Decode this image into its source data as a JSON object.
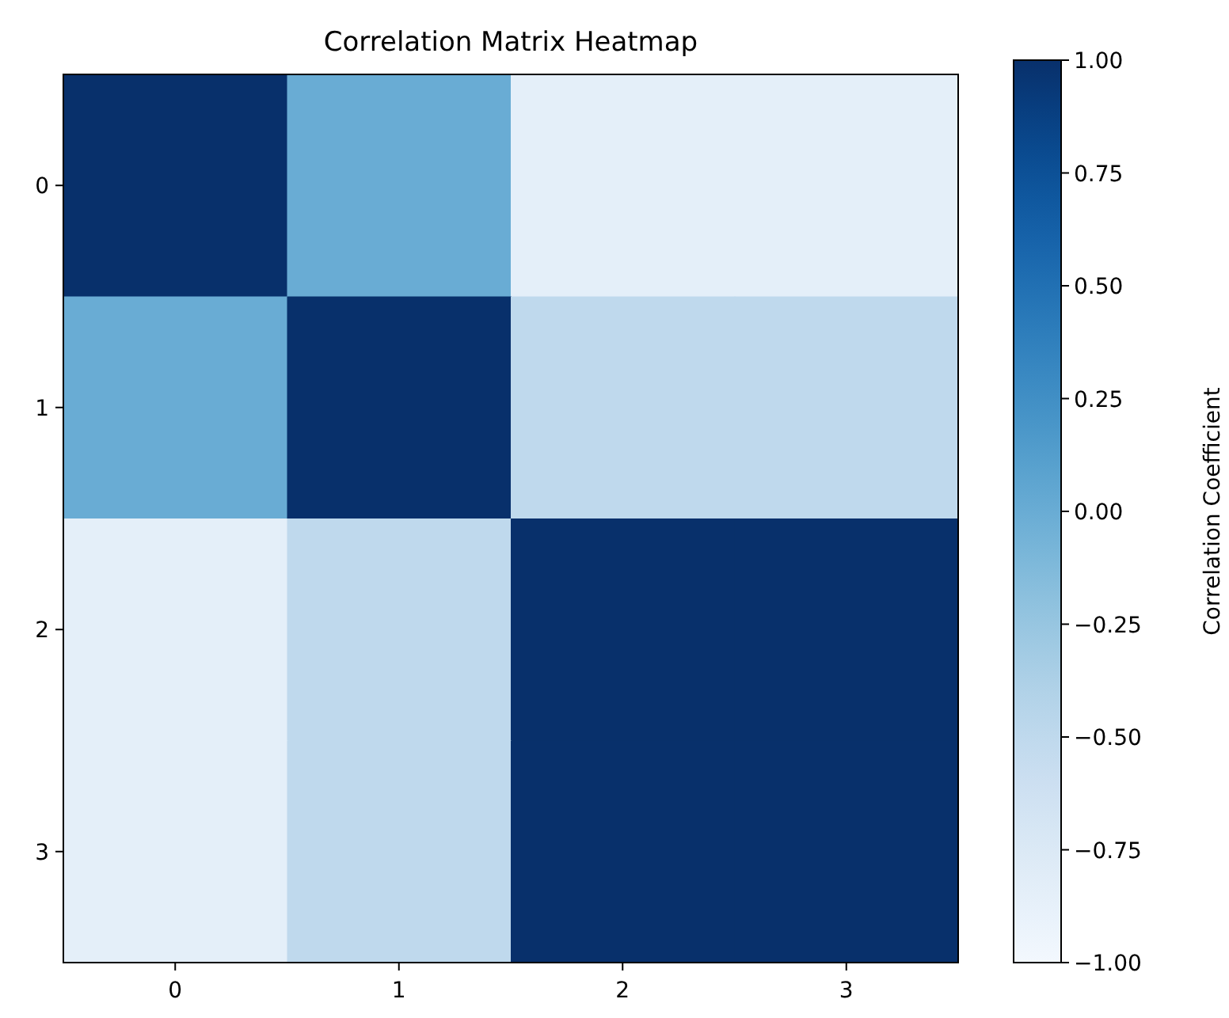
{
  "chart_data": {
    "type": "heatmap",
    "title": "Correlation Matrix Heatmap",
    "categories": [
      "0",
      "1",
      "2",
      "3"
    ],
    "y_categories": [
      "0",
      "1",
      "2",
      "3"
    ],
    "cells": [
      [
        1,
        0,
        -0.85,
        -0.85
      ],
      [
        0,
        1,
        -0.5,
        -0.5
      ],
      [
        -0.85,
        -0.5,
        1,
        1
      ],
      [
        -0.85,
        -0.5,
        1,
        1
      ]
    ],
    "clim": [
      -1,
      1
    ],
    "clabel": "Correlation Coefficient",
    "cticks": [
      {
        "value": -1,
        "label": "−1.00"
      },
      {
        "value": -0.75,
        "label": "−0.75"
      },
      {
        "value": -0.5,
        "label": "−0.50"
      },
      {
        "value": -0.25,
        "label": "−0.25"
      },
      {
        "value": 0,
        "label": "0.00"
      },
      {
        "value": 0.25,
        "label": "0.25"
      },
      {
        "value": 0.5,
        "label": "0.50"
      },
      {
        "value": 0.75,
        "label": "0.75"
      },
      {
        "value": 1,
        "label": "1.00"
      }
    ]
  }
}
